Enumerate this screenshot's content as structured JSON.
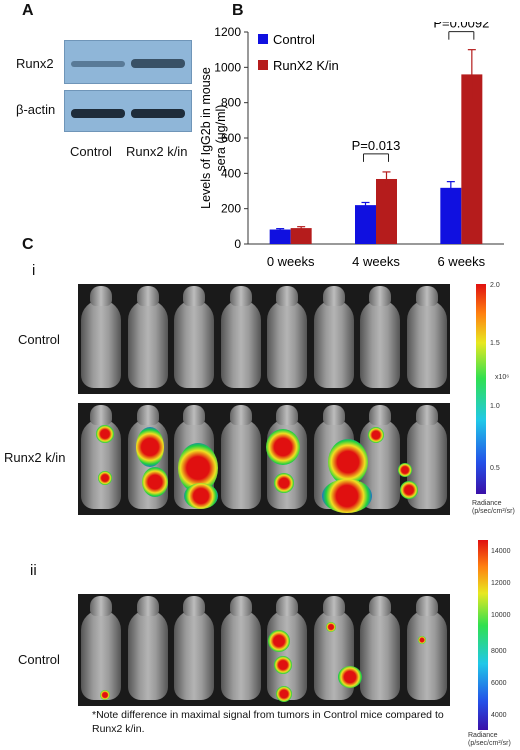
{
  "panel_a": {
    "letter": "A",
    "row_labels": [
      "Runx2",
      "β-actin"
    ],
    "lane_labels": [
      "Control",
      "Runx2 k/in"
    ]
  },
  "panel_b": {
    "letter": "B"
  },
  "chart_data": {
    "type": "bar",
    "categories": [
      "0 weeks",
      "4 weeks",
      "6 weeks"
    ],
    "series": [
      {
        "name": "Control",
        "values": [
          82,
          220,
          318
        ],
        "errors": [
          5,
          15,
          35
        ],
        "color": "#1010e0"
      },
      {
        "name": "RunX2 K/in",
        "values": [
          90,
          368,
          960
        ],
        "errors": [
          8,
          40,
          140
        ],
        "color": "#b51c1c"
      }
    ],
    "ylabel": "Levels of IgG2b in mouse sera (μg/ml)",
    "ylim": [
      0,
      1200
    ],
    "yticks": [
      0,
      200,
      400,
      600,
      800,
      1000,
      1200
    ],
    "legend": "top-left",
    "grid": false,
    "annotations": [
      {
        "text": "P=0.013",
        "category": "4 weeks"
      },
      {
        "text": "P=0.0092",
        "category": "6 weeks"
      }
    ]
  },
  "panel_c": {
    "letter": "C",
    "sub_i": "i",
    "sub_ii": "ii",
    "rows": [
      "Control",
      "Runx2 k/in",
      "Control"
    ],
    "colorbar_i": {
      "ticks": [
        "2.0",
        "1.5",
        "1.0",
        "0.5"
      ],
      "multiplier": "x10⁶",
      "unit": "Radiance (p/sec/cm²/sr)"
    },
    "colorbar_ii": {
      "ticks": [
        "14000",
        "12000",
        "10000",
        "8000",
        "6000",
        "4000"
      ],
      "unit": "Radiance (p/sec/cm²/sr)"
    },
    "note": "*Note difference in maximal signal from tumors in Control mice compared to Runx2 k/in."
  }
}
